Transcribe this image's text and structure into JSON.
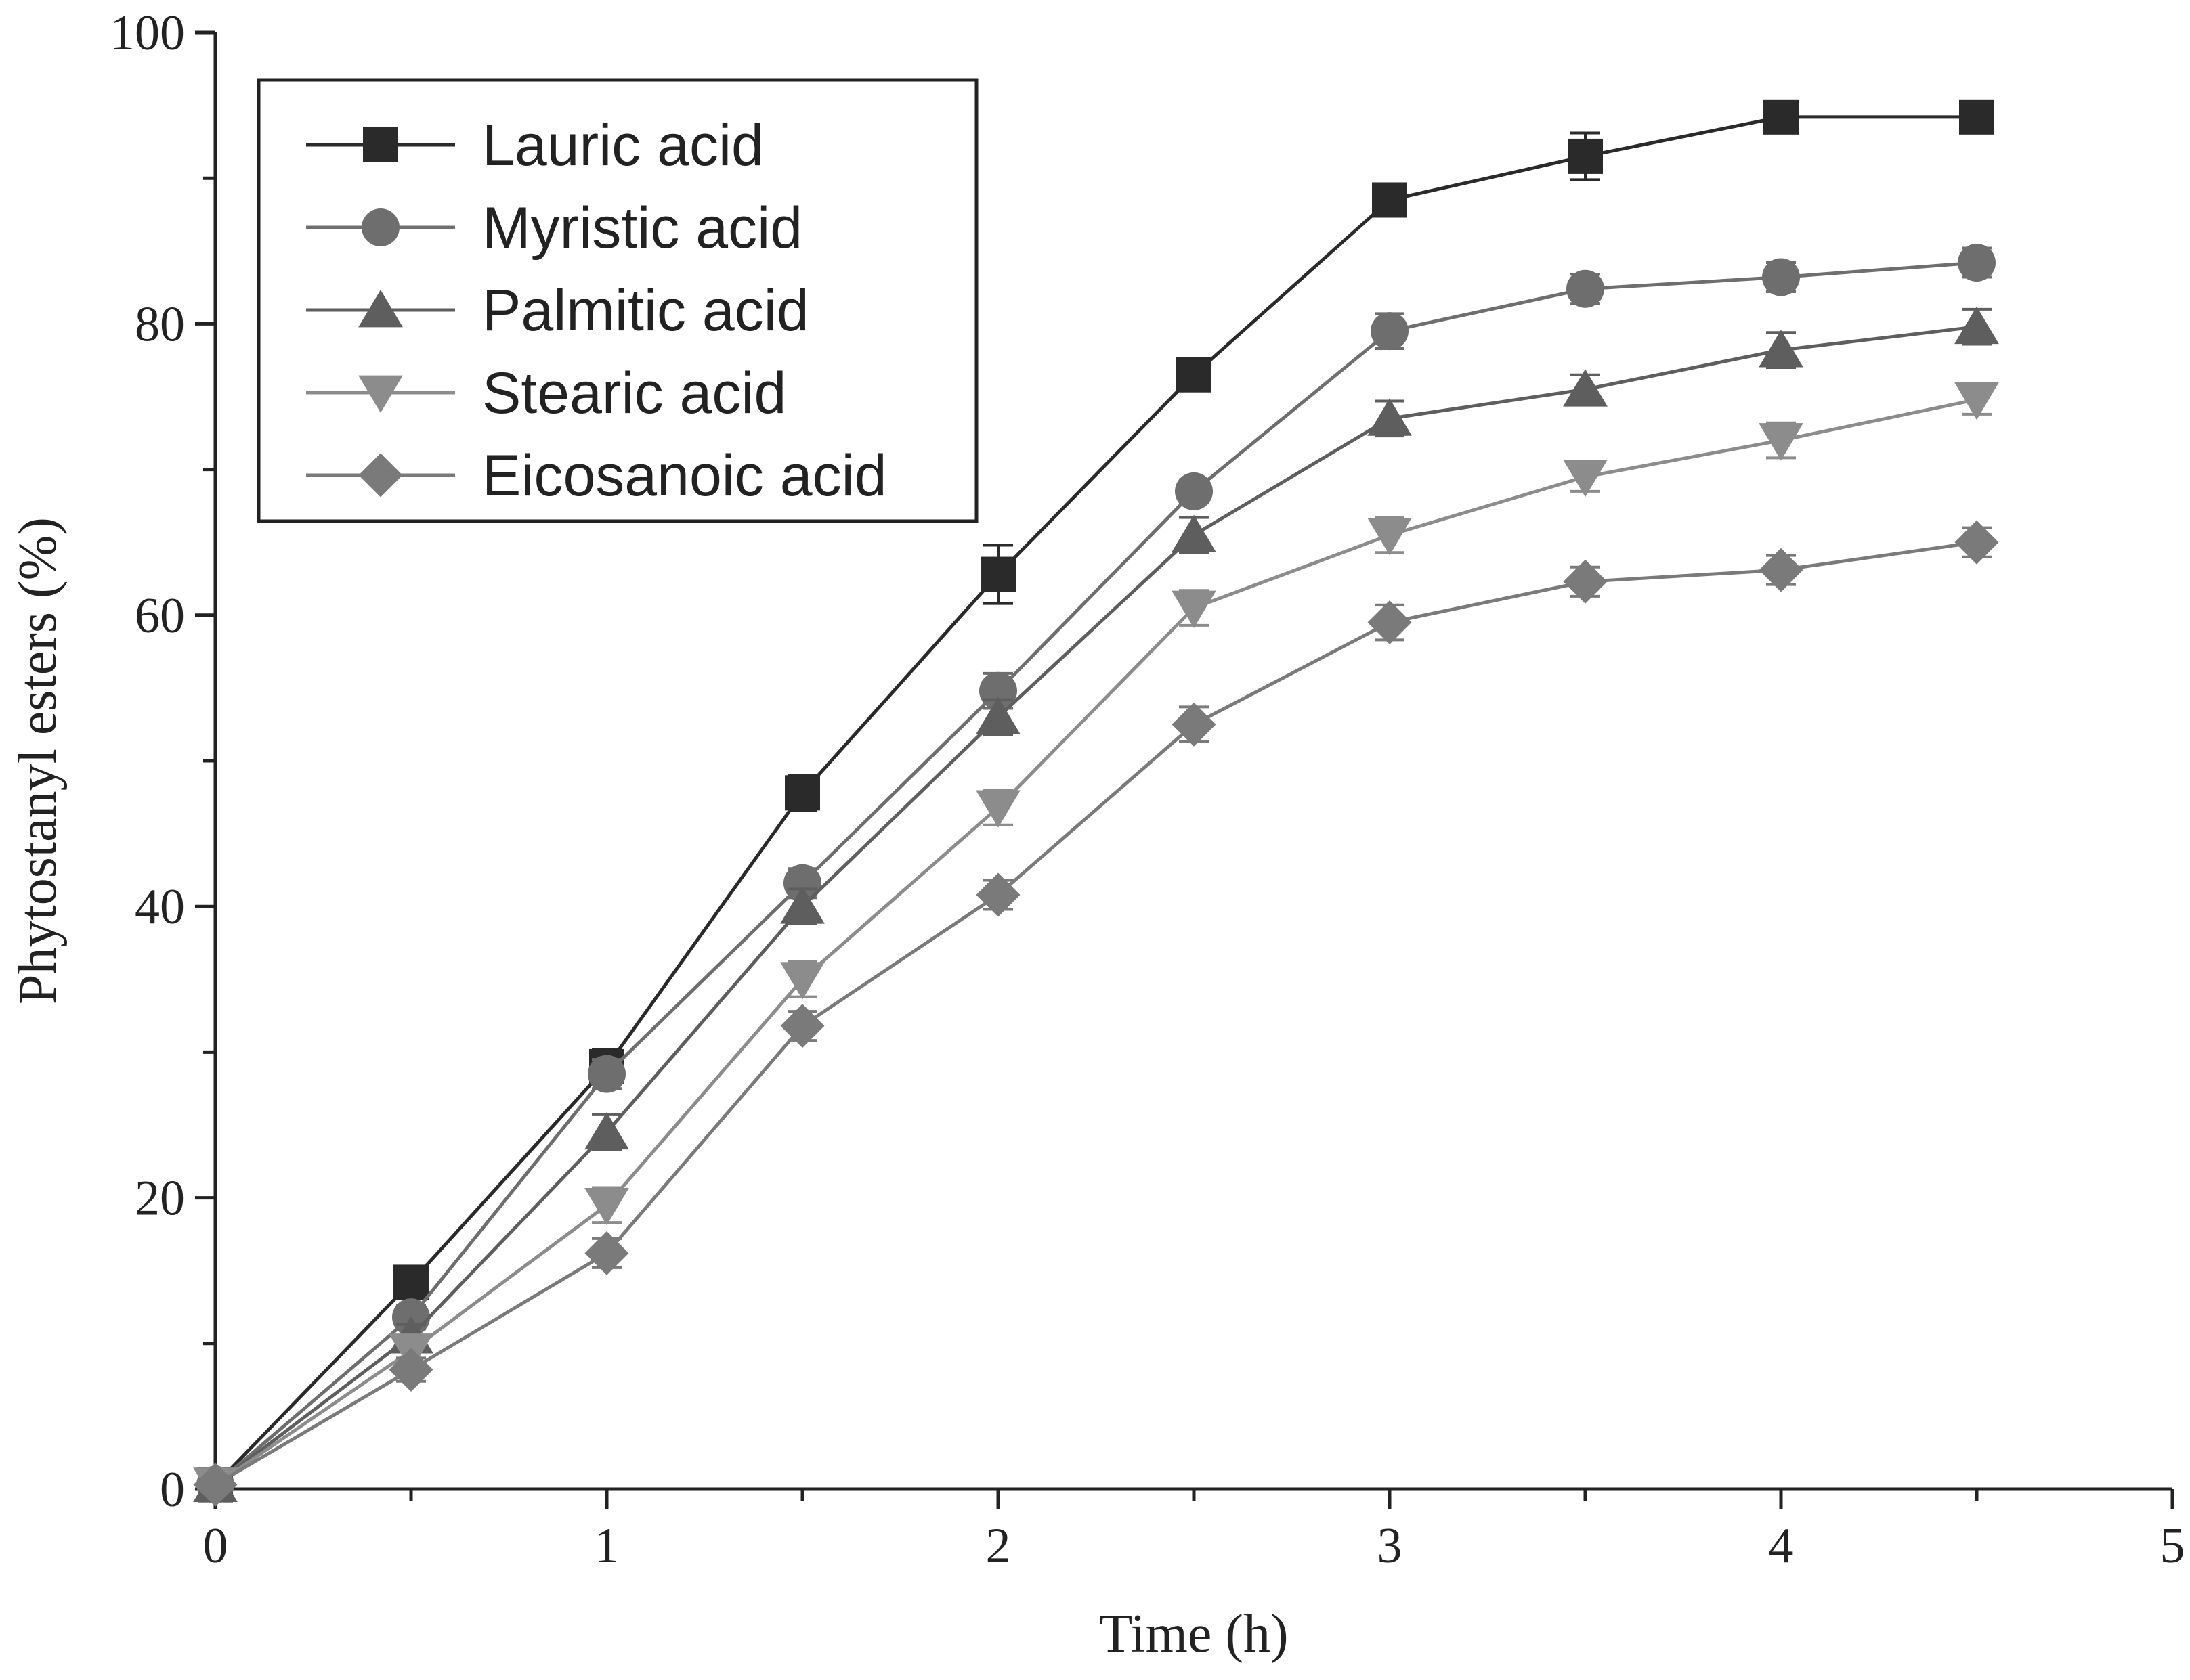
{
  "chart_data": {
    "type": "line",
    "title": "",
    "xlabel": "Time (h)",
    "ylabel": "Phytostanyl esters (%)",
    "xlim": [
      0,
      5
    ],
    "ylim": [
      0,
      100
    ],
    "xticks": [
      "0",
      "1",
      "2",
      "3",
      "4",
      "5"
    ],
    "yticks": [
      "0",
      "20",
      "40",
      "60",
      "80",
      "100"
    ],
    "x": [
      0,
      0.5,
      1,
      1.5,
      2,
      2.5,
      3,
      3.5,
      4,
      4.5
    ],
    "grid": false,
    "legend_position": "top-left",
    "series": [
      {
        "name": "Lauric acid",
        "marker": "square",
        "color": "#2a2a2a",
        "values": [
          0.3,
          14.2,
          29,
          47.8,
          62.8,
          76.5,
          88.5,
          91.5,
          94.2,
          94.2
        ],
        "errors": [
          0,
          0.8,
          1.2,
          1.2,
          2.0,
          0.6,
          1.0,
          1.6,
          0.6,
          0.6
        ]
      },
      {
        "name": "Myristic acid",
        "marker": "circle",
        "color": "#6e6e6e",
        "values": [
          0.3,
          11.8,
          28.5,
          41.6,
          54.8,
          68.5,
          79.5,
          82.4,
          83.2,
          84.2
        ],
        "errors": [
          0,
          0.8,
          1.0,
          1.0,
          1.2,
          0.8,
          1.2,
          1.0,
          1.0,
          1.0
        ]
      },
      {
        "name": "Palmitic acid",
        "marker": "triangle-up",
        "color": "#5e5e5e",
        "values": [
          0.3,
          10.5,
          24.5,
          40.0,
          53.0,
          65.5,
          73.5,
          75.5,
          78.2,
          79.8
        ],
        "errors": [
          0,
          0.8,
          1.2,
          1.2,
          1.2,
          1.2,
          1.2,
          1.0,
          1.2,
          1.2
        ]
      },
      {
        "name": "Stearic acid",
        "marker": "triangle-down",
        "color": "#8c8c8c",
        "values": [
          0.3,
          9.5,
          19.5,
          35.0,
          46.8,
          60.5,
          65.5,
          69.5,
          72.0,
          74.8
        ],
        "errors": [
          0,
          0.8,
          1.2,
          1.2,
          1.2,
          1.2,
          1.2,
          1.0,
          1.2,
          1.0
        ]
      },
      {
        "name": "Eicosanoic acid",
        "marker": "diamond",
        "color": "#7a7a7a",
        "values": [
          0.3,
          8.2,
          16.2,
          31.8,
          40.8,
          52.5,
          59.5,
          62.3,
          63.1,
          65.0
        ],
        "errors": [
          0,
          0.8,
          1.0,
          1.0,
          1.0,
          1.2,
          1.2,
          1.0,
          1.0,
          1.0
        ]
      }
    ]
  }
}
